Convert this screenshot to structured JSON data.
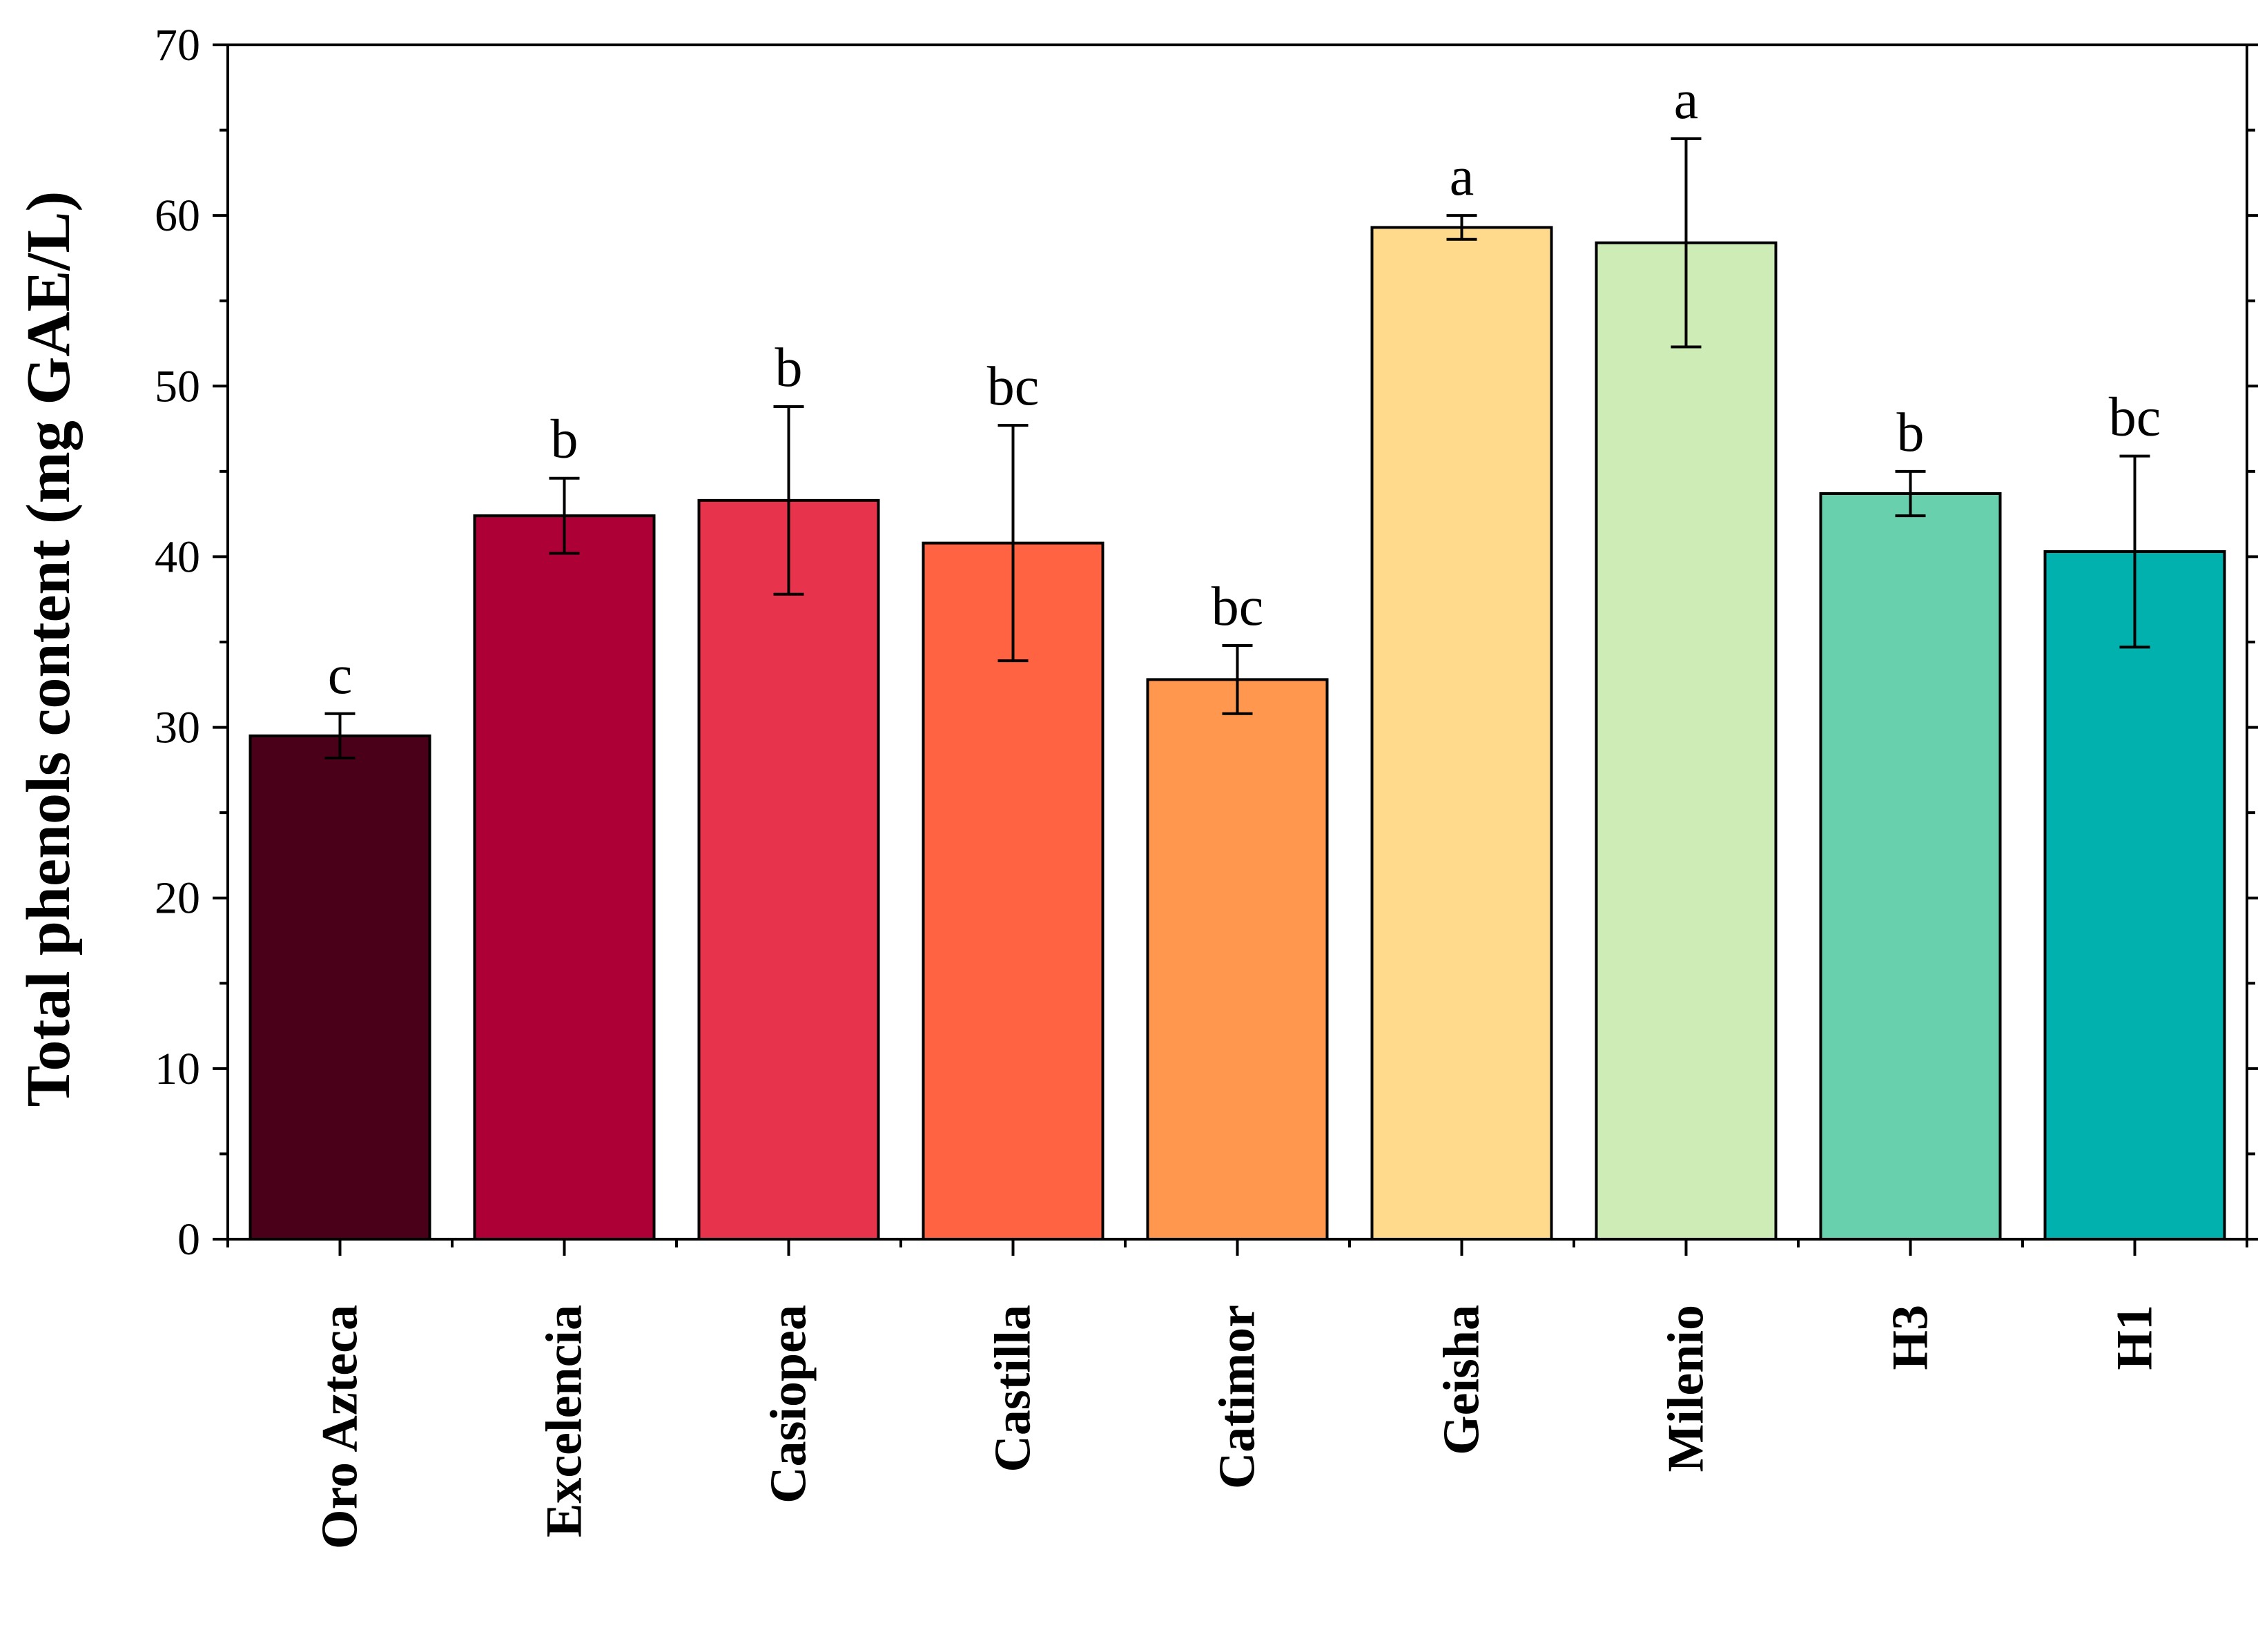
{
  "chart_data": {
    "type": "bar",
    "title": "",
    "xlabel": "",
    "ylabel": "Total phenols content (mg GAE/L)",
    "ylim": [
      0,
      70
    ],
    "yticks": [
      0,
      10,
      20,
      30,
      40,
      50,
      60,
      70
    ],
    "grid": false,
    "categories": [
      "Oro Azteca",
      "Excelencia",
      "Casiopea",
      "Castilla",
      "Catimor",
      "Geisha",
      "Milenio",
      "H3",
      "H1"
    ],
    "values": [
      29.5,
      42.4,
      43.3,
      40.8,
      32.8,
      59.3,
      58.4,
      43.7,
      40.3
    ],
    "errors": [
      1.3,
      2.2,
      5.5,
      6.9,
      2.0,
      0.7,
      6.1,
      1.3,
      5.6
    ],
    "significance": [
      "c",
      "b",
      "b",
      "bc",
      "bc",
      "a",
      "a",
      "b",
      "bc"
    ],
    "colors": [
      "#4a0019",
      "#ad0037",
      "#e8334d",
      "#ff6342",
      "#ff974e",
      "#ffd98c",
      "#ceedb6",
      "#69d0ae",
      "#00b1ad"
    ]
  }
}
